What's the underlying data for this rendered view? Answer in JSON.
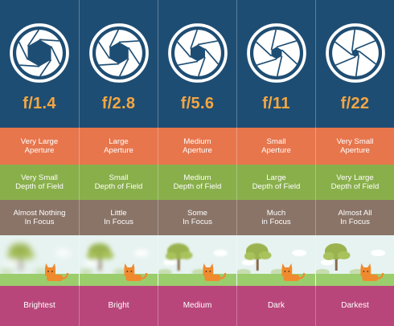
{
  "colors": {
    "header_bg": "#1e4d73",
    "fstop_text": "#f4a742",
    "aperture_row": "#e7764d",
    "depth_row": "#89af4a",
    "focus_row": "#8a7468",
    "brightness_row": "#b8467a",
    "scene_sky": "#e7f3f1",
    "scene_grass": "#9ccd6d",
    "cat": "#f08a2f"
  },
  "columns": [
    {
      "fstop": "f/1.4",
      "aperture": "Very Large\nAperture",
      "depth": "Very Small\nDepth of Field",
      "focus": "Almost Nothing\nIn Focus",
      "brightness": "Brightest",
      "icon": "aperture-icon-wide",
      "blur": 4
    },
    {
      "fstop": "f/2.8",
      "aperture": "Large\nAperture",
      "depth": "Small\nDepth of Field",
      "focus": "Little\nIn Focus",
      "brightness": "Bright",
      "icon": "aperture-icon-large",
      "blur": 2.8
    },
    {
      "fstop": "f/5.6",
      "aperture": "Medium\nAperture",
      "depth": "Medium\nDepth of Field",
      "focus": "Some\nIn Focus",
      "brightness": "Medium",
      "icon": "aperture-icon-medium",
      "blur": 1.2
    },
    {
      "fstop": "f/11",
      "aperture": "Small\nAperture",
      "depth": "Large\nDepth of Field",
      "focus": "Much\nin Focus",
      "brightness": "Dark",
      "icon": "aperture-icon-small",
      "blur": 0.4
    },
    {
      "fstop": "f/22",
      "aperture": "Very Small\nAperture",
      "depth": "Very Large\nDepth of Field",
      "focus": "Almost All\nIn Focus",
      "brightness": "Darkest",
      "icon": "aperture-icon-tiny",
      "blur": 0
    }
  ]
}
